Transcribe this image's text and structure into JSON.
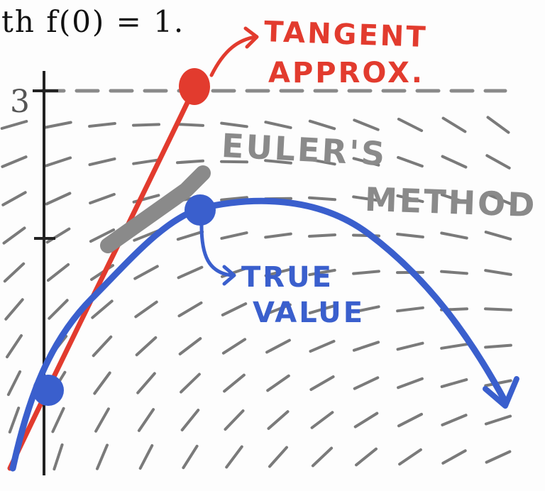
{
  "header": {
    "fragment": "th  f(0) = 1."
  },
  "axis": {
    "tick_label_3": "3"
  },
  "annotations": {
    "tangent_line1": "TANGENT",
    "tangent_line2": "APPROX.",
    "euler_line1": "EULER'S",
    "euler_line2": "METHOD",
    "true_line1": "TRUE",
    "true_line2": "VALUE"
  },
  "colors": {
    "tangent": "#e23b2e",
    "euler": "#8a8a8a",
    "true_value": "#3a5fcd",
    "slope_field": "#7a7a7a",
    "axis": "#222222"
  }
}
